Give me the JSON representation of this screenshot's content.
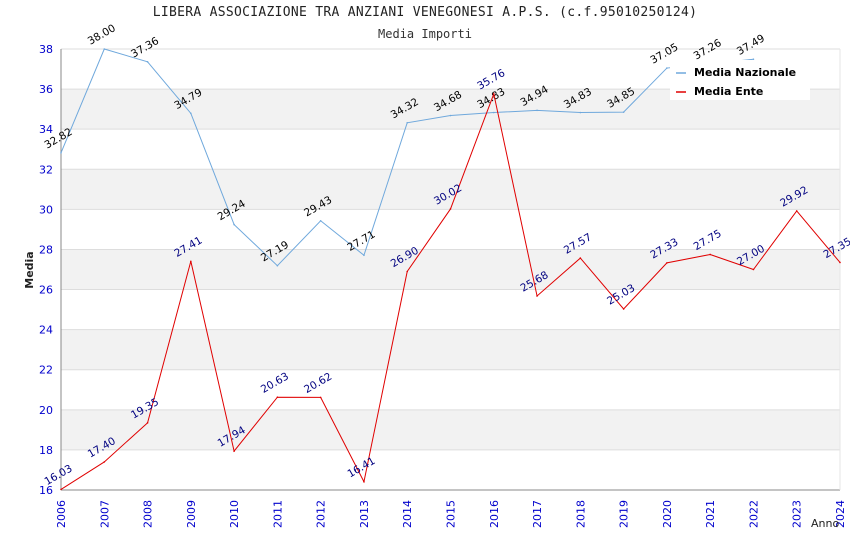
{
  "chart_data": {
    "type": "line",
    "title": "LIBERA ASSOCIAZIONE TRA ANZIANI VENEGONESI A.P.S. (c.f.95010250124)",
    "subtitle": "Media Importi",
    "xlabel": "Anno",
    "ylabel": "Media",
    "ylim": [
      16,
      38
    ],
    "yticks": [
      "16",
      "18",
      "20",
      "22",
      "24",
      "26",
      "28",
      "30",
      "32",
      "34",
      "36",
      "38"
    ],
    "categories": [
      "2006",
      "2007",
      "2008",
      "2009",
      "2010",
      "2011",
      "2012",
      "2013",
      "2014",
      "2015",
      "2016",
      "2017",
      "2018",
      "2019",
      "2020",
      "2021",
      "2022",
      "2023",
      "2024"
    ],
    "grid": true,
    "legend_position": "top-right",
    "series": [
      {
        "name": "Media Nazionale",
        "color": "#6fa8dc",
        "label_color": "#000000",
        "values": [
          32.82,
          38.0,
          37.36,
          34.79,
          29.24,
          27.19,
          29.43,
          27.71,
          34.32,
          34.68,
          34.83,
          34.94,
          34.83,
          34.85,
          37.05,
          37.26,
          37.49,
          null,
          null
        ],
        "labels": [
          "32.82",
          "38.00",
          "37.36",
          "34.79",
          "29.24",
          "27.19",
          "29.43",
          "27.71",
          "34.32",
          "34.68",
          "34.83",
          "34.94",
          "34.83",
          "34.85",
          "37.05",
          "37.26",
          "37.49",
          "",
          ""
        ]
      },
      {
        "name": "Media Ente",
        "color": "#e00000",
        "label_color": "#000080",
        "values": [
          16.03,
          17.4,
          19.35,
          27.41,
          17.94,
          20.63,
          20.62,
          16.41,
          26.9,
          30.02,
          35.76,
          25.68,
          27.57,
          25.03,
          27.33,
          27.75,
          27.0,
          29.92,
          27.35
        ],
        "labels": [
          "16.03",
          "17.40",
          "19.35",
          "27.41",
          "17.94",
          "20.63",
          "20.62",
          "16.41",
          "26.90",
          "30.02",
          "35.76",
          "25.68",
          "27.57",
          "25.03",
          "27.33",
          "27.75",
          "27.00",
          "29.92",
          "27.35"
        ]
      }
    ]
  }
}
